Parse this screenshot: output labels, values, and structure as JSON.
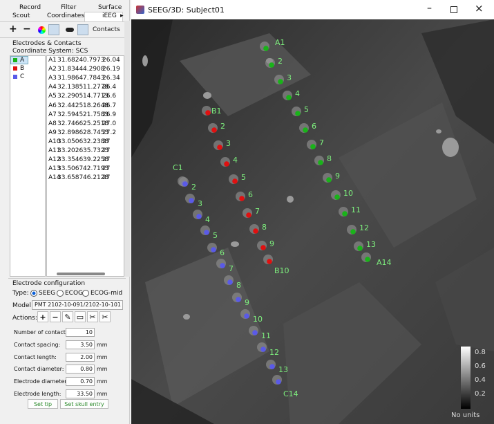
{
  "tabs": {
    "row1": [
      "Record",
      "Filter",
      "Surface"
    ],
    "row2": [
      "Scout",
      "Coordinates",
      "iEEG"
    ]
  },
  "toolbar": {
    "add": "+",
    "remove": "−",
    "dropdown": "Contacts"
  },
  "panel": {
    "section_title": "Electrodes & Contacts",
    "coordinate_system": "Coordinate System: SCS"
  },
  "electrodes": [
    {
      "name": "A",
      "color": "#19b319"
    },
    {
      "name": "B",
      "color": "#e01010"
    },
    {
      "name": "C",
      "color": "#5a5ae8"
    }
  ],
  "contacts": [
    [
      "A1",
      "31.6824",
      "0.7973",
      "26.04"
    ],
    [
      "A2",
      "31.8344",
      "4.2908",
      "26.19"
    ],
    [
      "A3",
      "31.9864",
      "7.7843",
      "26.34"
    ],
    [
      "A4",
      "32.1385",
      "11.2778",
      "26.4"
    ],
    [
      "A5",
      "32.2905",
      "14.7713",
      "26.6"
    ],
    [
      "A6",
      "32.4425",
      "18.2648",
      "26.7"
    ],
    [
      "A7",
      "32.5945",
      "21.7583",
      "26.9"
    ],
    [
      "A8",
      "32.7466",
      "25.2518",
      "27.0"
    ],
    [
      "A9",
      "32.8986",
      "28.7453",
      "27.2"
    ],
    [
      "A10",
      "33.0506",
      "32.2388",
      "27"
    ],
    [
      "A11",
      "33.2026",
      "35.7323",
      "27"
    ],
    [
      "A12",
      "33.3546",
      "39.2258",
      "27"
    ],
    [
      "A13",
      "33.5067",
      "42.7193",
      "27"
    ],
    [
      "A14",
      "33.6587",
      "46.2128",
      "27"
    ]
  ],
  "config": {
    "title": "Electrode configuration",
    "type_label": "Type:",
    "types": [
      "SEEG",
      "ECOG",
      "ECOG-mid"
    ],
    "model_label": "Model:",
    "model": "PMT 2102-10-091/2102-10-101",
    "actions_label": "Actions:",
    "fields": [
      {
        "label": "Number of contacts:",
        "value": "10"
      },
      {
        "label": "Contact spacing:",
        "value": "3.50",
        "unit": "mm"
      },
      {
        "label": "Contact length:",
        "value": "2.00",
        "unit": "mm"
      },
      {
        "label": "Contact diameter:",
        "value": "0.80",
        "unit": "mm"
      },
      {
        "label": "Electrode diameter:",
        "value": "0.70",
        "unit": "mm"
      },
      {
        "label": "Electrode length:",
        "value": "33.50",
        "unit": "mm"
      }
    ],
    "buttons": [
      "Set tip",
      "Set skull entry"
    ]
  },
  "viewer": {
    "title": "SEEG/3D: Subject01",
    "contact_labels": [
      [
        "A1",
        "2",
        "3",
        "4",
        "5",
        "6",
        "7",
        "8",
        "9",
        "10",
        "11",
        "12",
        "13",
        "A14"
      ],
      [
        "B1",
        "2",
        "3",
        "4",
        "5",
        "6",
        "7",
        "8",
        "9",
        "B10"
      ],
      [
        "C1",
        "2",
        "3",
        "4",
        "5",
        "6",
        "7",
        "8",
        "9",
        "10",
        "11",
        "12",
        "13",
        "C14"
      ]
    ],
    "colorbar": {
      "ticks": [
        "0.8",
        "0.6",
        "0.4",
        "0.2"
      ],
      "label": "No units"
    }
  }
}
